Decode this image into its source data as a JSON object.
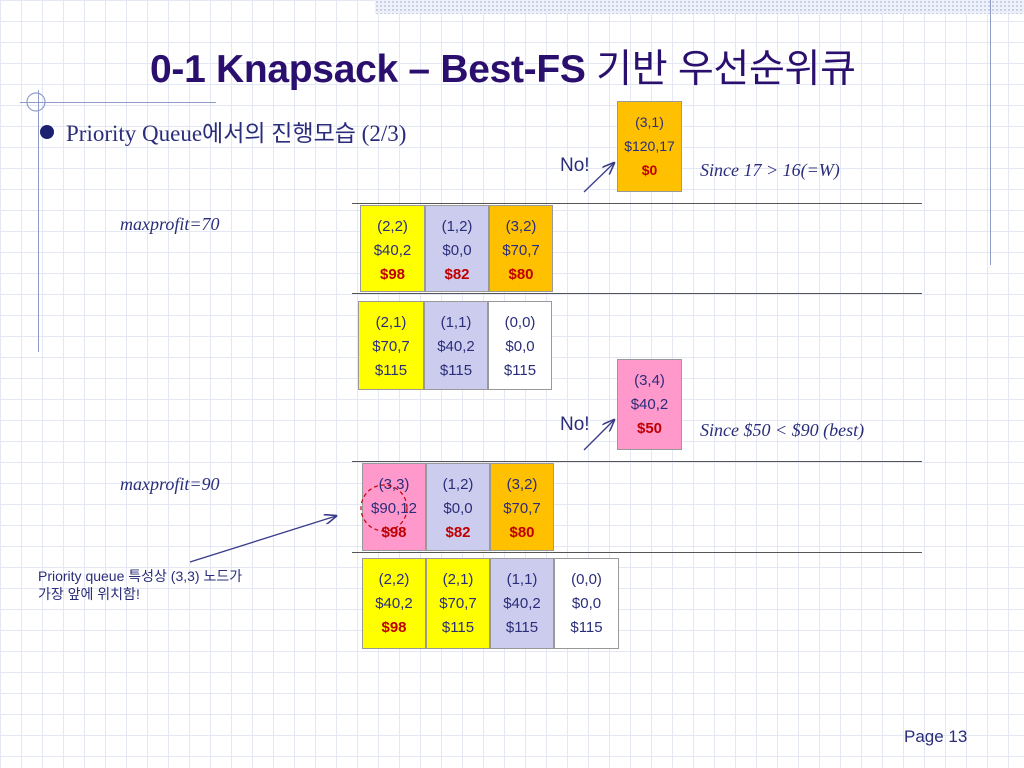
{
  "slide": {
    "title_en": "0-1 Knapsack – Best-FS",
    "title_kr": "기반 우선순위큐",
    "bullet": "Priority Queue에서의 진행모습 (2/3)",
    "maxprofit_1": "maxprofit=70",
    "maxprofit_2": "maxprofit=90",
    "no_1": "No!",
    "no_2": "No!",
    "since_1": "Since 17 > 16(=W)",
    "since_2": "Since $50 < $90 (best)",
    "note_line1": "Priority queue 특성상 (3,3) 노드가",
    "note_line2": "가장 앞에 위치함!",
    "page": "Page 13"
  },
  "nodes": {
    "n31": {
      "id": "(3,1)",
      "pw": "$120,17",
      "bound": "$0"
    },
    "q1a": {
      "id": "(2,2)",
      "pw": "$40,2",
      "bound": "$98"
    },
    "q1b": {
      "id": "(1,2)",
      "pw": "$0,0",
      "bound": "$82"
    },
    "q1c": {
      "id": "(3,2)",
      "pw": "$70,7",
      "bound": "$80"
    },
    "q2a": {
      "id": "(2,1)",
      "pw": "$70,7",
      "bound": "$115"
    },
    "q2b": {
      "id": "(1,1)",
      "pw": "$40,2",
      "bound": "$115"
    },
    "q2c": {
      "id": "(0,0)",
      "pw": "$0,0",
      "bound": "$115"
    },
    "n34": {
      "id": "(3,4)",
      "pw": "$40,2",
      "bound": "$50"
    },
    "q3a": {
      "id": "(3,3)",
      "pw": "$90,12",
      "bound": "$98"
    },
    "q3b": {
      "id": "(1,2)",
      "pw": "$0,0",
      "bound": "$82"
    },
    "q3c": {
      "id": "(3,2)",
      "pw": "$70,7",
      "bound": "$80"
    },
    "q4a": {
      "id": "(2,2)",
      "pw": "$40,2",
      "bound": "$98"
    },
    "q4b": {
      "id": "(2,1)",
      "pw": "$70,7",
      "bound": "$115"
    },
    "q4c": {
      "id": "(1,1)",
      "pw": "$40,2",
      "bound": "$115"
    },
    "q4d": {
      "id": "(0,0)",
      "pw": "$0,0",
      "bound": "$115"
    }
  },
  "colors": {
    "title": "#2a0f6e",
    "text": "#2a2d7a",
    "bound_highlight": "#c00000",
    "yellow": "#ffff00",
    "lavender": "#ccccee",
    "orange": "#ffc000",
    "pink": "#ff99cc"
  }
}
